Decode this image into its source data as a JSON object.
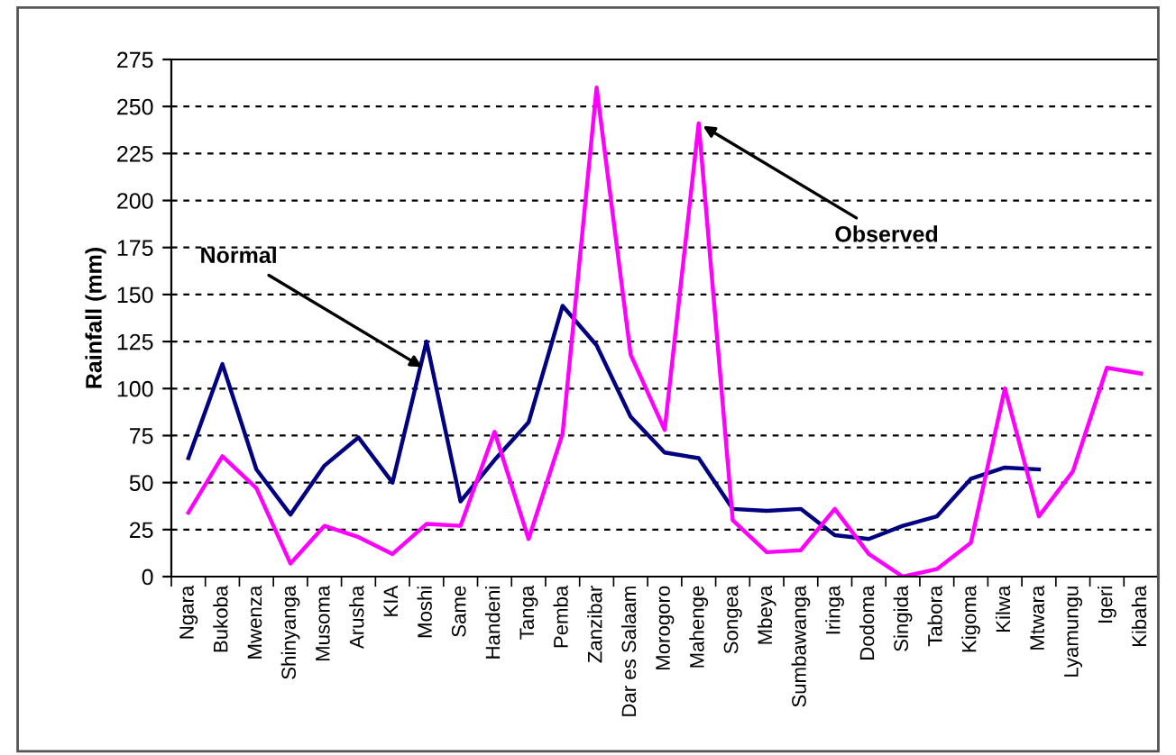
{
  "chart_data": {
    "type": "line",
    "ylabel": "Rainfall (mm)",
    "categories": [
      "Ngara",
      "Bukoba",
      "Mwenza",
      "Shinyanga",
      "Musoma",
      "Arusha",
      "KIA",
      "Moshi",
      "Same",
      "Handeni",
      "Tanga",
      "Pemba",
      "Zanzibar",
      "Dar es Salaam",
      "Morogoro",
      "Mahenge",
      "Songea",
      "Mbeya",
      "Sumbawanga",
      "Iringa",
      "Dodoma",
      "Singida",
      "Tabora",
      "Kigoma",
      "Kilwa",
      "Mtwara",
      "Lyamungu",
      "Igeri",
      "Kibaha"
    ],
    "series": [
      {
        "color": "#000080",
        "values": [
          63,
          113,
          57,
          33,
          59,
          74,
          50,
          125,
          40,
          62,
          82,
          144,
          123,
          85,
          66,
          63,
          36,
          35,
          36,
          22,
          20,
          27,
          32,
          52,
          58,
          57,
          null,
          null,
          null
        ]
      },
      {
        "color": "#ff00ff",
        "values": [
          34,
          64,
          47,
          7,
          27,
          21,
          12,
          28,
          27,
          77,
          20,
          76,
          260,
          118,
          78,
          241,
          30,
          13,
          14,
          36,
          12,
          0,
          4,
          18,
          100,
          32,
          56,
          111,
          108
        ]
      }
    ],
    "annotations": [
      {
        "text": "Normal",
        "x": "Moshi",
        "y": 110
      },
      {
        "text": "Observed",
        "x": "Mahenge",
        "y": 241
      }
    ],
    "ylim": [
      0,
      275
    ],
    "yticks": [
      0,
      25,
      50,
      75,
      100,
      125,
      150,
      175,
      200,
      225,
      250,
      275
    ],
    "grid": "y",
    "marker": "none",
    "line_style": "solid"
  }
}
